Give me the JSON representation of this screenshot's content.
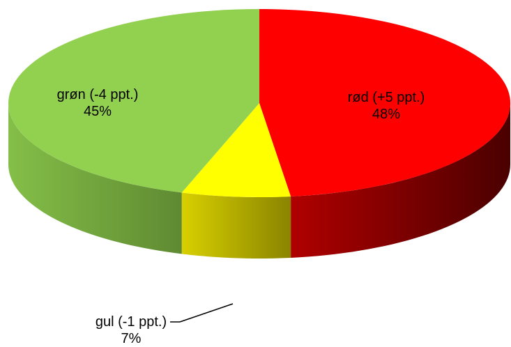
{
  "chart_data": {
    "type": "pie",
    "slices": [
      {
        "name": "rød (+5 ppt.)",
        "value": 48,
        "percent_label": "48%",
        "color": "#ff0000",
        "side_color": "#800000"
      },
      {
        "name": "gul (-1 ppt.)",
        "value": 7,
        "percent_label": "7%",
        "color": "#ffff00",
        "side_color": "#a8a000"
      },
      {
        "name": "grøn (-4 ppt.)",
        "value": 45,
        "percent_label": "45%",
        "color": "#92d050",
        "side_color": "#6a9a35"
      }
    ],
    "start_angle_deg": 0,
    "direction": "clockwise",
    "style": "3d"
  }
}
